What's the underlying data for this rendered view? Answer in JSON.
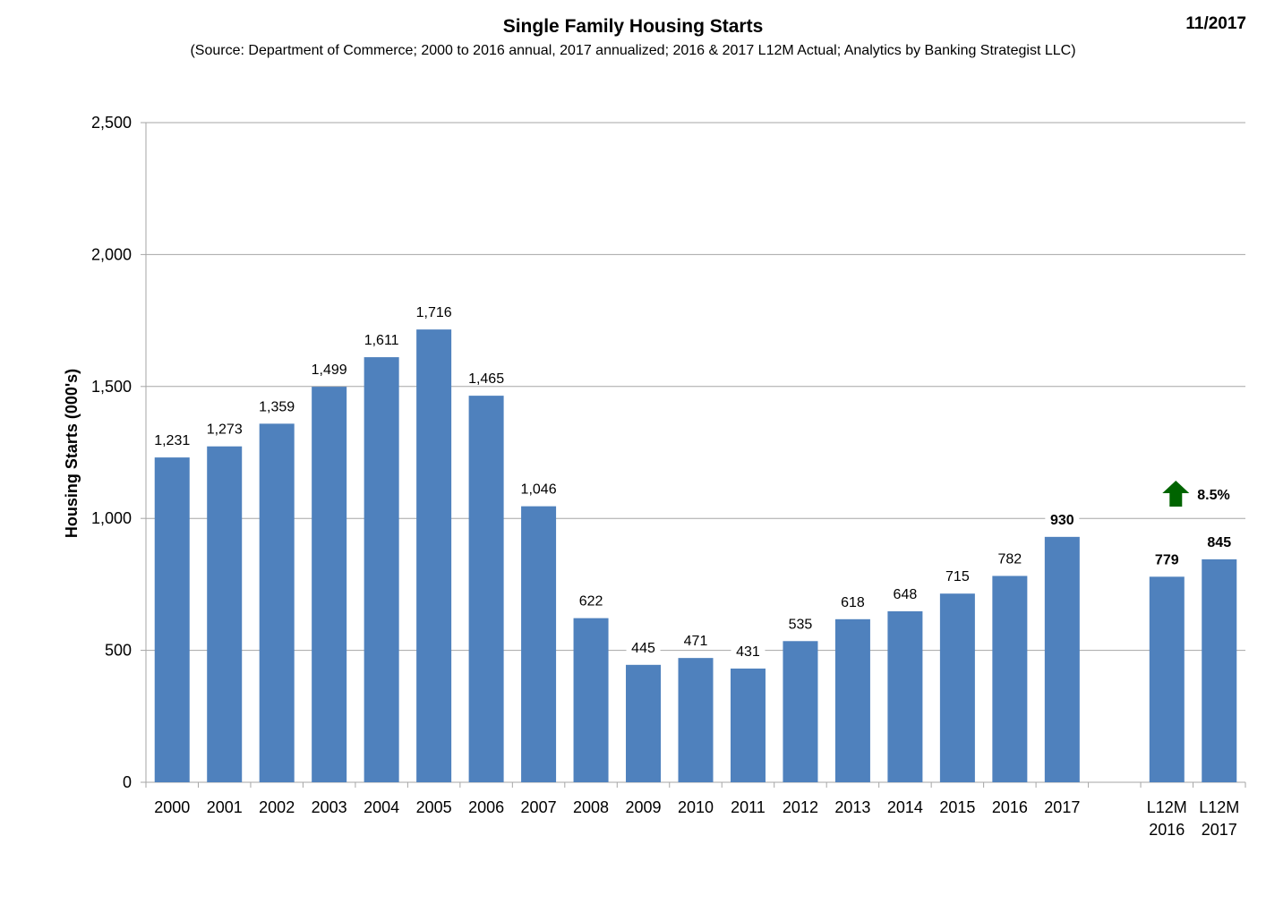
{
  "header": {
    "title": "Single Family Housing Starts",
    "subtitle": "(Source: Department of Commerce; 2000 to 2016 annual, 2017 annualized; 2016 & 2017 L12M Actual; Analytics by Banking Strategist LLC)",
    "date": "11/2017"
  },
  "chart_data": {
    "type": "bar",
    "title": "Single Family Housing Starts",
    "subtitle": "(Source: Department of Commerce; 2000 to 2016 annual, 2017 annualized; 2016 & 2017 L12M Actual; Analytics by Banking Strategist LLC)",
    "xlabel": "",
    "ylabel": "Housing Starts (000's)",
    "ylim": [
      0,
      2500
    ],
    "yticks": [
      0,
      500,
      1000,
      1500,
      2000,
      2500
    ],
    "ytick_labels": [
      "0",
      "500",
      "1,000",
      "1,500",
      "2,000",
      "2,500"
    ],
    "grid": true,
    "bar_color": "#4F81BD",
    "categories": [
      {
        "label": [
          "2000"
        ],
        "value": 1231,
        "value_label": "1,231",
        "bold": false
      },
      {
        "label": [
          "2001"
        ],
        "value": 1273,
        "value_label": "1,273",
        "bold": false
      },
      {
        "label": [
          "2002"
        ],
        "value": 1359,
        "value_label": "1,359",
        "bold": false
      },
      {
        "label": [
          "2003"
        ],
        "value": 1499,
        "value_label": "1,499",
        "bold": false
      },
      {
        "label": [
          "2004"
        ],
        "value": 1611,
        "value_label": "1,611",
        "bold": false
      },
      {
        "label": [
          "2005"
        ],
        "value": 1716,
        "value_label": "1,716",
        "bold": false
      },
      {
        "label": [
          "2006"
        ],
        "value": 1465,
        "value_label": "1,465",
        "bold": false
      },
      {
        "label": [
          "2007"
        ],
        "value": 1046,
        "value_label": "1,046",
        "bold": false
      },
      {
        "label": [
          "2008"
        ],
        "value": 622,
        "value_label": "622",
        "bold": false
      },
      {
        "label": [
          "2009"
        ],
        "value": 445,
        "value_label": "445",
        "bold": false
      },
      {
        "label": [
          "2010"
        ],
        "value": 471,
        "value_label": "471",
        "bold": false
      },
      {
        "label": [
          "2011"
        ],
        "value": 431,
        "value_label": "431",
        "bold": false
      },
      {
        "label": [
          "2012"
        ],
        "value": 535,
        "value_label": "535",
        "bold": false
      },
      {
        "label": [
          "2013"
        ],
        "value": 618,
        "value_label": "618",
        "bold": false
      },
      {
        "label": [
          "2014"
        ],
        "value": 648,
        "value_label": "648",
        "bold": false
      },
      {
        "label": [
          "2015"
        ],
        "value": 715,
        "value_label": "715",
        "bold": false
      },
      {
        "label": [
          "2016"
        ],
        "value": 782,
        "value_label": "782",
        "bold": false
      },
      {
        "label": [
          "2017"
        ],
        "value": 930,
        "value_label": "930",
        "bold": true
      },
      {
        "label": [
          ""
        ],
        "value": null,
        "value_label": "",
        "bold": false
      },
      {
        "label": [
          "L12M",
          "2016"
        ],
        "value": 779,
        "value_label": "779",
        "bold": true
      },
      {
        "label": [
          "L12M",
          "2017"
        ],
        "value": 845,
        "value_label": "845",
        "bold": true
      }
    ],
    "annotations": [
      {
        "type": "up-arrow",
        "text": "8.5%",
        "color": "#006400"
      }
    ]
  }
}
